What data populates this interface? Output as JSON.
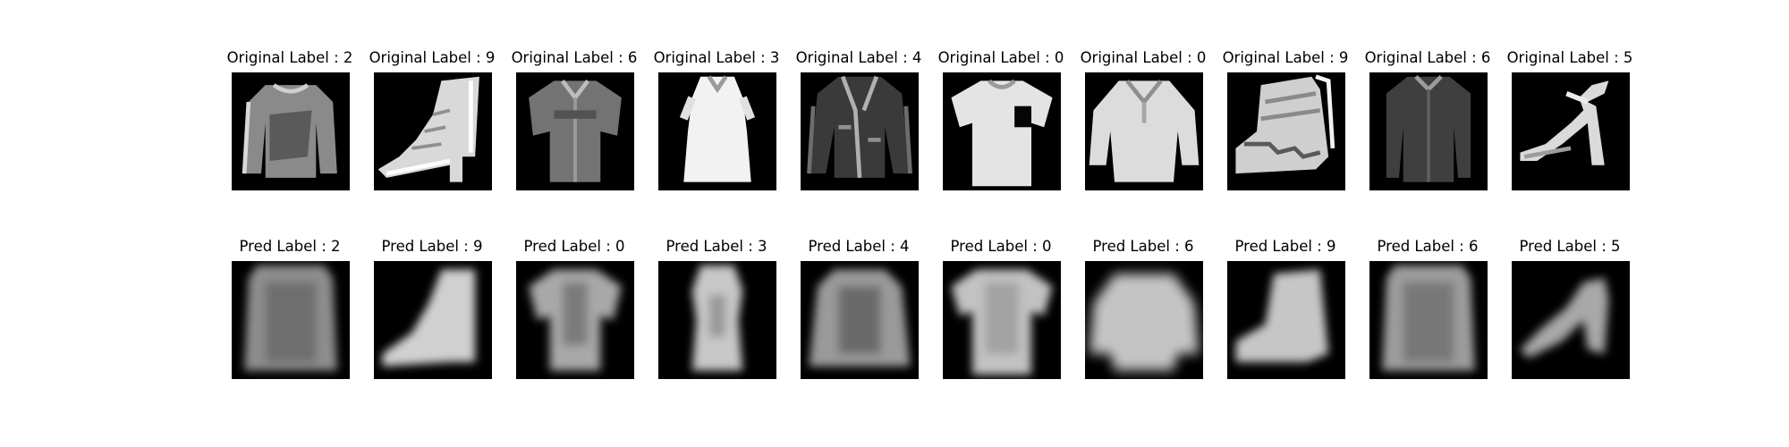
{
  "figure": {
    "rows": [
      {
        "kind": "original",
        "items": [
          {
            "title": "Original Label : 2",
            "label": 2,
            "icon": "pullover-icon"
          },
          {
            "title": "Original Label : 9",
            "label": 9,
            "icon": "ankle-boot-icon"
          },
          {
            "title": "Original Label : 6",
            "label": 6,
            "icon": "shirt-icon"
          },
          {
            "title": "Original Label : 3",
            "label": 3,
            "icon": "dress-icon"
          },
          {
            "title": "Original Label : 4",
            "label": 4,
            "icon": "coat-icon"
          },
          {
            "title": "Original Label : 0",
            "label": 0,
            "icon": "tshirt-icon"
          },
          {
            "title": "Original Label : 0",
            "label": 0,
            "icon": "tshirt-icon"
          },
          {
            "title": "Original Label : 9",
            "label": 9,
            "icon": "ankle-boot-icon"
          },
          {
            "title": "Original Label : 6",
            "label": 6,
            "icon": "shirt-icon"
          },
          {
            "title": "Original Label : 5",
            "label": 5,
            "icon": "sandal-icon"
          }
        ]
      },
      {
        "kind": "pred",
        "items": [
          {
            "title": "Pred Label : 2",
            "label": 2,
            "icon": "pullover-icon"
          },
          {
            "title": "Pred Label : 9",
            "label": 9,
            "icon": "ankle-boot-icon"
          },
          {
            "title": "Pred Label : 0",
            "label": 0,
            "icon": "tshirt-icon"
          },
          {
            "title": "Pred Label : 3",
            "label": 3,
            "icon": "dress-icon"
          },
          {
            "title": "Pred Label : 4",
            "label": 4,
            "icon": "coat-icon"
          },
          {
            "title": "Pred Label : 0",
            "label": 0,
            "icon": "tshirt-icon"
          },
          {
            "title": "Pred Label : 6",
            "label": 6,
            "icon": "shirt-icon"
          },
          {
            "title": "Pred Label : 9",
            "label": 9,
            "icon": "ankle-boot-icon"
          },
          {
            "title": "Pred Label : 6",
            "label": 6,
            "icon": "shirt-icon"
          },
          {
            "title": "Pred Label : 5",
            "label": 5,
            "icon": "sandal-icon"
          }
        ]
      }
    ]
  }
}
